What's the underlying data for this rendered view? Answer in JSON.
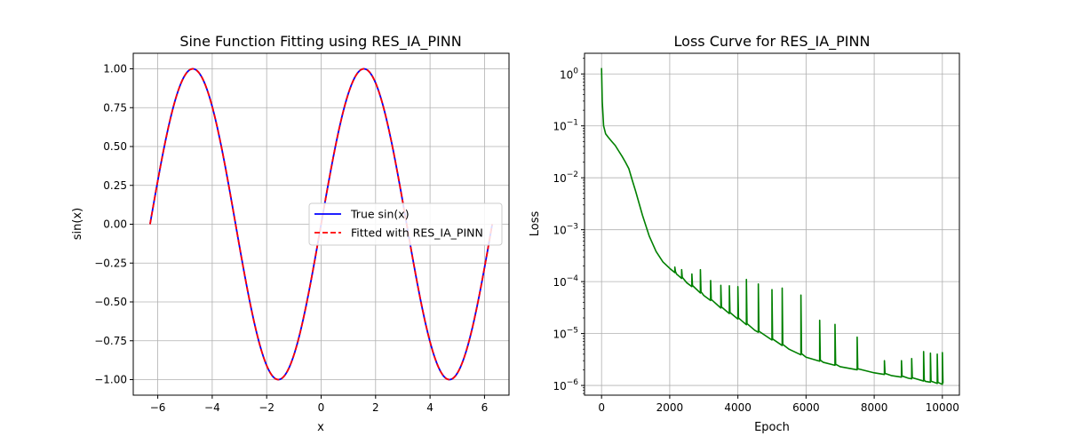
{
  "chart_data": [
    {
      "type": "line",
      "title": "Sine Function Fitting using RES_IA_PINN",
      "xlabel": "x",
      "ylabel": "sin(x)",
      "xlim": [
        -6.9,
        6.9
      ],
      "ylim": [
        -1.1,
        1.1
      ],
      "xticks": [
        -6,
        -4,
        -2,
        0,
        2,
        4,
        6
      ],
      "xtick_labels": [
        "−6",
        "−4",
        "−2",
        "0",
        "2",
        "4",
        "6"
      ],
      "yticks": [
        -1.0,
        -0.75,
        -0.5,
        -0.25,
        0.0,
        0.25,
        0.5,
        0.75,
        1.0
      ],
      "ytick_labels": [
        "−1.00",
        "−0.75",
        "−0.50",
        "−0.25",
        "0.00",
        "0.25",
        "0.50",
        "0.75",
        "1.00"
      ],
      "grid": true,
      "legend_position": "center-right",
      "x_range": [
        -6.2832,
        6.2832
      ],
      "function": "sin",
      "series": [
        {
          "name": "True sin(x)",
          "color": "#0000ff",
          "style": "solid"
        },
        {
          "name": "Fitted with RES_IA_PINN",
          "color": "#ff0000",
          "style": "dashed"
        }
      ]
    },
    {
      "type": "line",
      "title": "Loss Curve for RES_IA_PINN",
      "xlabel": "Epoch",
      "ylabel": "Loss",
      "yscale": "log",
      "xlim": [
        -500,
        10500
      ],
      "ylim": [
        6.5e-07,
        2.5
      ],
      "xticks": [
        0,
        2000,
        4000,
        6000,
        8000,
        10000
      ],
      "xtick_labels": [
        "0",
        "2000",
        "4000",
        "6000",
        "8000",
        "10000"
      ],
      "yticks": [
        1e-06,
        1e-05,
        0.0001,
        0.001,
        0.01,
        0.1,
        1
      ],
      "ytick_bases": [
        "10",
        "10",
        "10",
        "10",
        "10",
        "10",
        "10"
      ],
      "ytick_exponents": [
        "−6",
        "−5",
        "−4",
        "−3",
        "−2",
        "−1",
        "0"
      ],
      "grid": true,
      "series": [
        {
          "name": "",
          "color": "#008000",
          "baseline": {
            "x": [
              0,
              20,
              60,
              120,
              200,
              300,
              400,
              500,
              600,
              700,
              800,
              900,
              1000,
              1200,
              1400,
              1600,
              1800,
              2000,
              2200,
              2500,
              3000,
              3500,
              4000,
              4500,
              5000,
              5500,
              6000,
              6500,
              7000,
              7500,
              8000,
              8500,
              9000,
              9500,
              10000
            ],
            "y": [
              1.3,
              0.3,
              0.1,
              0.07,
              0.06,
              0.05,
              0.042,
              0.033,
              0.026,
              0.02,
              0.015,
              0.009,
              0.0055,
              0.0019,
              0.00075,
              0.00038,
              0.00024,
              0.00018,
              0.00014,
              9.5e-05,
              5.4e-05,
              3.1e-05,
              1.9e-05,
              1.15e-05,
              7.5e-06,
              5e-06,
              3.5e-06,
              2.8e-06,
              2.3e-06,
              2e-06,
              1.75e-06,
              1.55e-06,
              1.38e-06,
              1.2e-06,
              1.05e-06
            ]
          },
          "spikes": {
            "x": [
              2150,
              2350,
              2650,
              2900,
              3200,
              3500,
              3750,
              4000,
              4250,
              4600,
              5000,
              5300,
              5850,
              6400,
              6850,
              7500,
              8300,
              8800,
              9100,
              9450,
              9650,
              9850,
              10000
            ],
            "y": [
              0.00019,
              0.00017,
              0.00014,
              0.00017,
              0.000105,
              8.5e-05,
              8.3e-05,
              8e-05,
              0.00011,
              9e-05,
              7e-05,
              7.5e-05,
              5.5e-05,
              1.8e-05,
              1.5e-05,
              8.5e-06,
              3e-06,
              3e-06,
              3.3e-06,
              4.5e-06,
              4.2e-06,
              4e-06,
              4.3e-06
            ]
          }
        }
      ]
    }
  ]
}
